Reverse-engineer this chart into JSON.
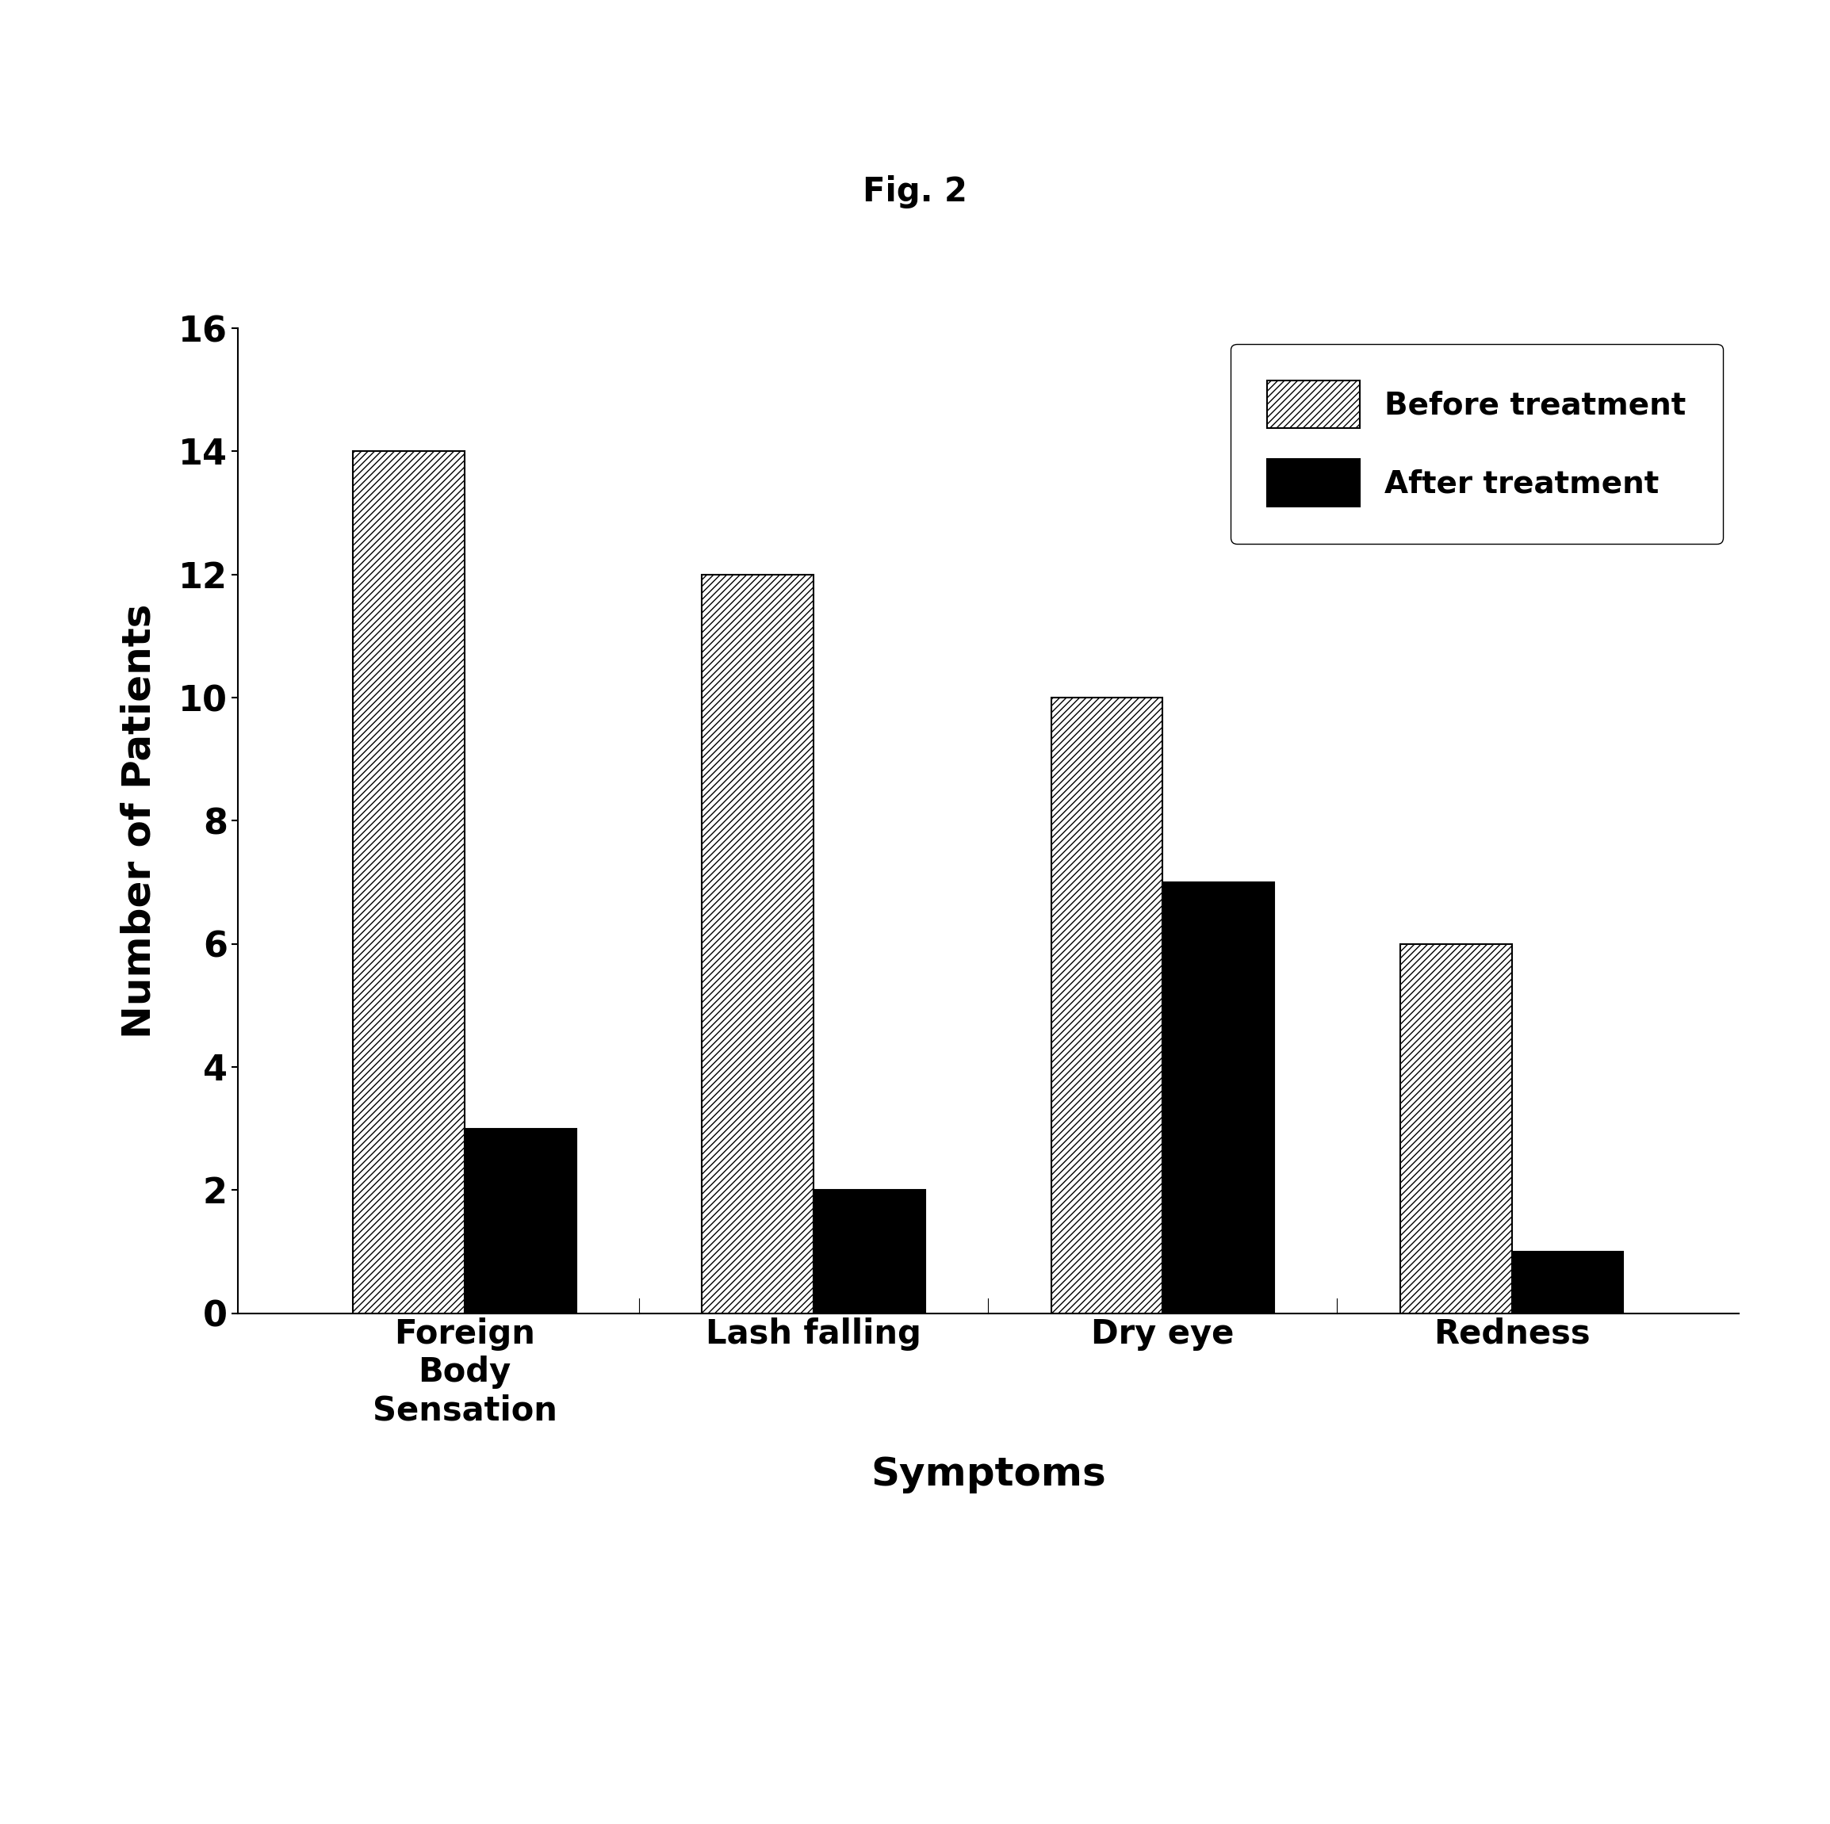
{
  "title": "Fig. 2",
  "xlabel": "Symptoms",
  "ylabel": "Number of Patients",
  "categories": [
    "Foreign\nBody\nSensation",
    "Lash falling",
    "Dry eye",
    "Redness"
  ],
  "before_treatment": [
    14,
    12,
    10,
    6
  ],
  "after_treatment": [
    3,
    2,
    7,
    1
  ],
  "ylim": [
    0,
    16
  ],
  "yticks": [
    0,
    2,
    4,
    6,
    8,
    10,
    12,
    14,
    16
  ],
  "legend_labels": [
    "Before treatment",
    "After treatment"
  ],
  "bar_width": 0.32,
  "hatch_before": "////",
  "color_before": "white",
  "color_after": "black",
  "edgecolor": "black",
  "background_color": "white",
  "title_fontsize": 30,
  "axis_label_fontsize": 36,
  "tick_fontsize": 32,
  "legend_fontsize": 28,
  "category_fontsize": 30
}
